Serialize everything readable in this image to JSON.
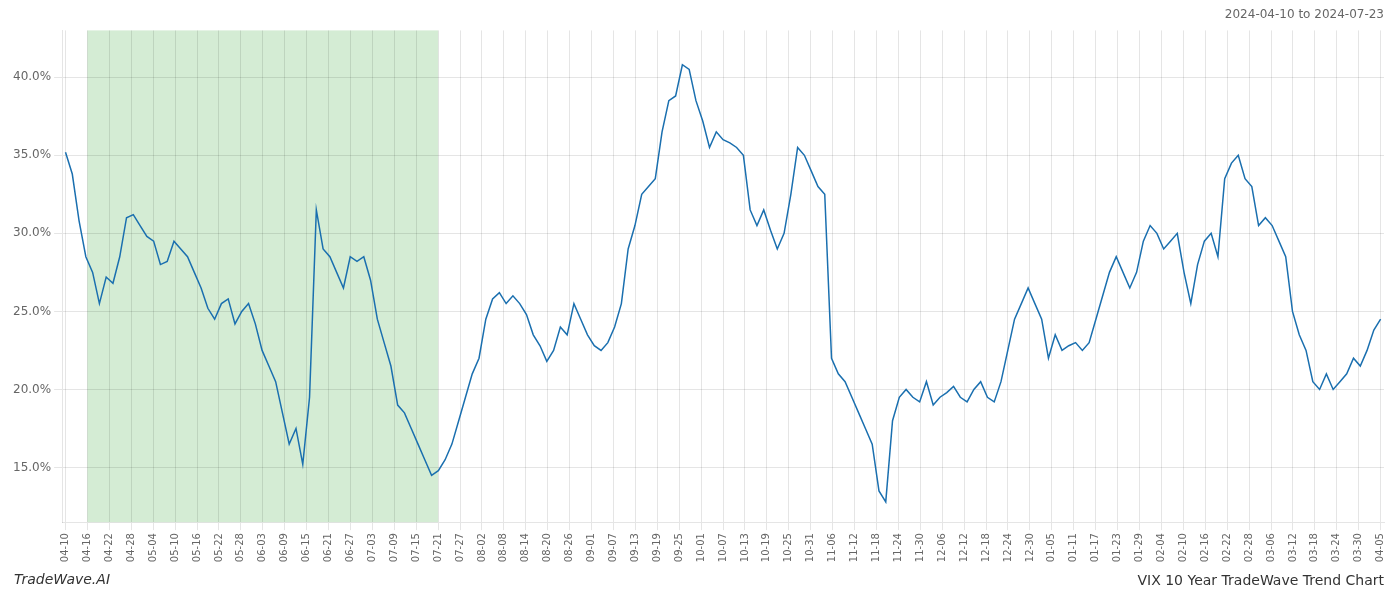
{
  "chart_data": {
    "type": "line",
    "title": "VIX 10 Year TradeWave Trend Chart",
    "subtitle": "2024-04-10 to 2024-07-23",
    "annotations": [
      {
        "text": "TradeWave.AI"
      }
    ],
    "color": "#1a6faf",
    "grid": true,
    "x": [
      0,
      1,
      2,
      3,
      4,
      5,
      6,
      7,
      8,
      9,
      10,
      11,
      12,
      13,
      14,
      15,
      16,
      17,
      18,
      19,
      20,
      21,
      22,
      23,
      24,
      25,
      26,
      27,
      28,
      29,
      30,
      31,
      32,
      33,
      34,
      35,
      36,
      37,
      38,
      39,
      40,
      41,
      42,
      43,
      44,
      45,
      46,
      47,
      48,
      49,
      50,
      51,
      52,
      53,
      54,
      55,
      56,
      57,
      58,
      59,
      60,
      61,
      62,
      63,
      64,
      65,
      66,
      67,
      68,
      69,
      70,
      71,
      72,
      73,
      74,
      75,
      76,
      77,
      78,
      79,
      80,
      81,
      82,
      83,
      84,
      85,
      86,
      87,
      88,
      89,
      90,
      91,
      92,
      93,
      94,
      95,
      96,
      97,
      98,
      99,
      100,
      101,
      102,
      103,
      104,
      105,
      106,
      107,
      108,
      109,
      110,
      111,
      112,
      113,
      114,
      115,
      116,
      117,
      118,
      119,
      120,
      121,
      122,
      123,
      124,
      125,
      126,
      127,
      128,
      129,
      130,
      131,
      132,
      133,
      134,
      135,
      136,
      137,
      138,
      139,
      140,
      141,
      142,
      143,
      144,
      145,
      146,
      147,
      148,
      149,
      150,
      151,
      152,
      153,
      154,
      155,
      156,
      157,
      158,
      159,
      160,
      161,
      162,
      163,
      164,
      165,
      166,
      167,
      168,
      169,
      170,
      171,
      172,
      173,
      174,
      175,
      176,
      177,
      178,
      179,
      180,
      181,
      182,
      183,
      184,
      185,
      186,
      187,
      188,
      189,
      190,
      191,
      192,
      193,
      194
    ],
    "values": [
      35.2,
      33.8,
      30.8,
      28.5,
      27.5,
      25.5,
      27.2,
      26.8,
      28.5,
      31.0,
      31.2,
      30.5,
      29.8,
      29.5,
      28.0,
      28.2,
      29.5,
      29.0,
      28.5,
      27.5,
      26.5,
      25.2,
      24.5,
      25.5,
      25.8,
      24.2,
      25.0,
      25.5,
      24.2,
      22.5,
      21.5,
      20.5,
      18.5,
      16.5,
      17.5,
      15.2,
      19.5,
      31.5,
      29.0,
      28.5,
      27.5,
      26.5,
      28.5,
      28.2,
      28.5,
      27.0,
      24.5,
      23.0,
      21.5,
      19.0,
      18.5,
      17.5,
      16.5,
      15.5,
      14.5,
      14.8,
      15.5,
      16.5,
      18.0,
      19.5,
      21.0,
      22.0,
      24.5,
      25.8,
      26.2,
      25.5,
      26.0,
      25.5,
      24.8,
      23.5,
      22.8,
      21.8,
      22.5,
      24.0,
      23.5,
      25.5,
      24.5,
      23.5,
      22.8,
      22.5,
      23.0,
      24.0,
      25.5,
      29.0,
      30.5,
      32.5,
      33.0,
      33.5,
      36.5,
      38.5,
      38.8,
      40.8,
      40.5,
      38.5,
      37.2,
      35.5,
      36.5,
      36.0,
      35.8,
      35.5,
      35.0,
      31.5,
      30.5,
      31.5,
      30.2,
      29.0,
      30.0,
      32.5,
      35.5,
      35.0,
      34.0,
      33.0,
      32.5,
      22.0,
      21.0,
      20.5,
      19.5,
      18.5,
      17.5,
      16.5,
      13.5,
      12.8,
      18.0,
      19.5,
      20.0,
      19.5,
      19.2,
      20.5,
      19.0,
      19.5,
      19.8,
      20.2,
      19.5,
      19.2,
      20.0,
      20.5,
      19.5,
      19.2,
      20.5,
      22.5,
      24.5,
      25.5,
      26.5,
      25.5,
      24.5,
      22.0,
      23.5,
      22.5,
      22.8,
      23.0,
      22.5,
      23.0,
      24.5,
      26.0,
      27.5,
      28.5,
      27.5,
      26.5,
      27.5,
      29.5,
      30.5,
      30.0,
      29.0,
      29.5,
      30.0,
      27.5,
      25.5,
      28.0,
      29.5,
      30.0,
      28.5,
      33.5,
      34.5,
      35.0,
      33.5,
      33.0,
      30.5,
      31.0,
      30.5,
      29.5,
      28.5,
      25.0,
      23.5,
      22.5,
      20.5,
      20.0,
      21.0,
      20.0,
      20.5,
      21.0,
      22.0,
      21.5,
      22.5,
      23.8,
      24.5
    ],
    "xlim": [
      -0.5,
      194.5
    ],
    "xticks": [
      {
        "value": 0,
        "label": "04-10"
      },
      {
        "value": 3.2333333333,
        "label": "04-16"
      },
      {
        "value": 6.4666666667,
        "label": "04-22"
      },
      {
        "value": 9.7,
        "label": "04-28"
      },
      {
        "value": 12.9333333333,
        "label": "05-04"
      },
      {
        "value": 16.1666666667,
        "label": "05-10"
      },
      {
        "value": 19.4,
        "label": "05-16"
      },
      {
        "value": 22.6333333333,
        "label": "05-22"
      },
      {
        "value": 25.8666666667,
        "label": "05-28"
      },
      {
        "value": 29.1,
        "label": "06-03"
      },
      {
        "value": 32.3333333333,
        "label": "06-09"
      },
      {
        "value": 35.5666666667,
        "label": "06-15"
      },
      {
        "value": 38.8,
        "label": "06-21"
      },
      {
        "value": 42.0333333333,
        "label": "06-27"
      },
      {
        "value": 45.2666666667,
        "label": "07-03"
      },
      {
        "value": 48.5,
        "label": "07-09"
      },
      {
        "value": 51.7333333333,
        "label": "07-15"
      },
      {
        "value": 54.9666666667,
        "label": "07-21"
      },
      {
        "value": 58.2,
        "label": "07-27"
      },
      {
        "value": 61.4333333333,
        "label": "08-02"
      },
      {
        "value": 64.6666666667,
        "label": "08-08"
      },
      {
        "value": 67.9,
        "label": "08-14"
      },
      {
        "value": 71.1333333333,
        "label": "08-20"
      },
      {
        "value": 74.3666666667,
        "label": "08-26"
      },
      {
        "value": 77.6,
        "label": "09-01"
      },
      {
        "value": 80.8333333333,
        "label": "09-07"
      },
      {
        "value": 84.0666666667,
        "label": "09-13"
      },
      {
        "value": 87.3,
        "label": "09-19"
      },
      {
        "value": 90.5333333333,
        "label": "09-25"
      },
      {
        "value": 93.7666666667,
        "label": "10-01"
      },
      {
        "value": 97,
        "label": "10-07"
      },
      {
        "value": 100.2333333333,
        "label": "10-13"
      },
      {
        "value": 103.4666666667,
        "label": "10-19"
      },
      {
        "value": 106.7,
        "label": "10-25"
      },
      {
        "value": 109.9333333333,
        "label": "10-31"
      },
      {
        "value": 113.1666666667,
        "label": "11-06"
      },
      {
        "value": 116.4,
        "label": "11-12"
      },
      {
        "value": 119.6333333333,
        "label": "11-18"
      },
      {
        "value": 122.8666666667,
        "label": "11-24"
      },
      {
        "value": 126.1,
        "label": "11-30"
      },
      {
        "value": 129.3333333333,
        "label": "12-06"
      },
      {
        "value": 132.5666666667,
        "label": "12-12"
      },
      {
        "value": 135.8,
        "label": "12-18"
      },
      {
        "value": 139.0333333333,
        "label": "12-24"
      },
      {
        "value": 142.2666666667,
        "label": "12-30"
      },
      {
        "value": 145.5,
        "label": "01-05"
      },
      {
        "value": 148.7333333333,
        "label": "01-11"
      },
      {
        "value": 151.9666666667,
        "label": "01-17"
      },
      {
        "value": 155.2,
        "label": "01-23"
      },
      {
        "value": 158.4333333333,
        "label": "01-29"
      },
      {
        "value": 161.6666666667,
        "label": "02-04"
      },
      {
        "value": 164.9,
        "label": "02-10"
      },
      {
        "value": 168.1333333333,
        "label": "02-16"
      },
      {
        "value": 171.3666666667,
        "label": "02-22"
      },
      {
        "value": 174.6,
        "label": "02-28"
      },
      {
        "value": 177.8333333333,
        "label": "03-06"
      },
      {
        "value": 181.0666666667,
        "label": "03-12"
      },
      {
        "value": 184.3,
        "label": "03-18"
      },
      {
        "value": 187.5333333333,
        "label": "03-24"
      },
      {
        "value": 190.7666666667,
        "label": "03-30"
      },
      {
        "value": 194,
        "label": "04-05"
      }
    ],
    "ylim": [
      11.5,
      43
    ],
    "yticks": [
      {
        "value": 15.0,
        "label": "15.0%"
      },
      {
        "value": 20.0,
        "label": "20.0%"
      },
      {
        "value": 25.0,
        "label": "25.0%"
      },
      {
        "value": 30.0,
        "label": "30.0%"
      },
      {
        "value": 35.0,
        "label": "35.0%"
      },
      {
        "value": 40.0,
        "label": "40.0%"
      }
    ],
    "shaded": [
      {
        "from": 3.2333333333,
        "to": 54.9666666667,
        "color": "#d4ecd4"
      }
    ]
  }
}
